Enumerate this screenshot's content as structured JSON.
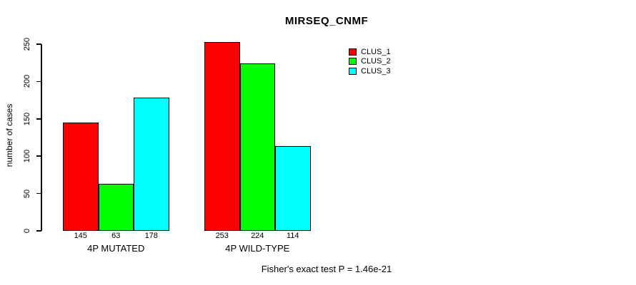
{
  "chart_data": {
    "type": "bar",
    "title": "MIRSEQ_CNMF",
    "ylabel": "number of cases",
    "xlabel": "",
    "categories": [
      "4P MUTATED",
      "4P WILD-TYPE"
    ],
    "series": [
      {
        "name": "CLUS_1",
        "color": "#ff0000",
        "values": [
          145,
          253
        ]
      },
      {
        "name": "CLUS_2",
        "color": "#00ff00",
        "values": [
          63,
          224
        ]
      },
      {
        "name": "CLUS_3",
        "color": "#00ffff",
        "values": [
          178,
          114
        ]
      }
    ],
    "yticks": [
      0,
      50,
      100,
      150,
      200,
      250
    ],
    "ylim": [
      0,
      250
    ],
    "bar_value_labels": true,
    "grid": false,
    "legend_position": "top-right",
    "annotation": "Fisher's exact test P = 1.46e-21",
    "colors": {
      "background": "#ffffff",
      "axis": "#000000",
      "text": "#000000"
    }
  }
}
